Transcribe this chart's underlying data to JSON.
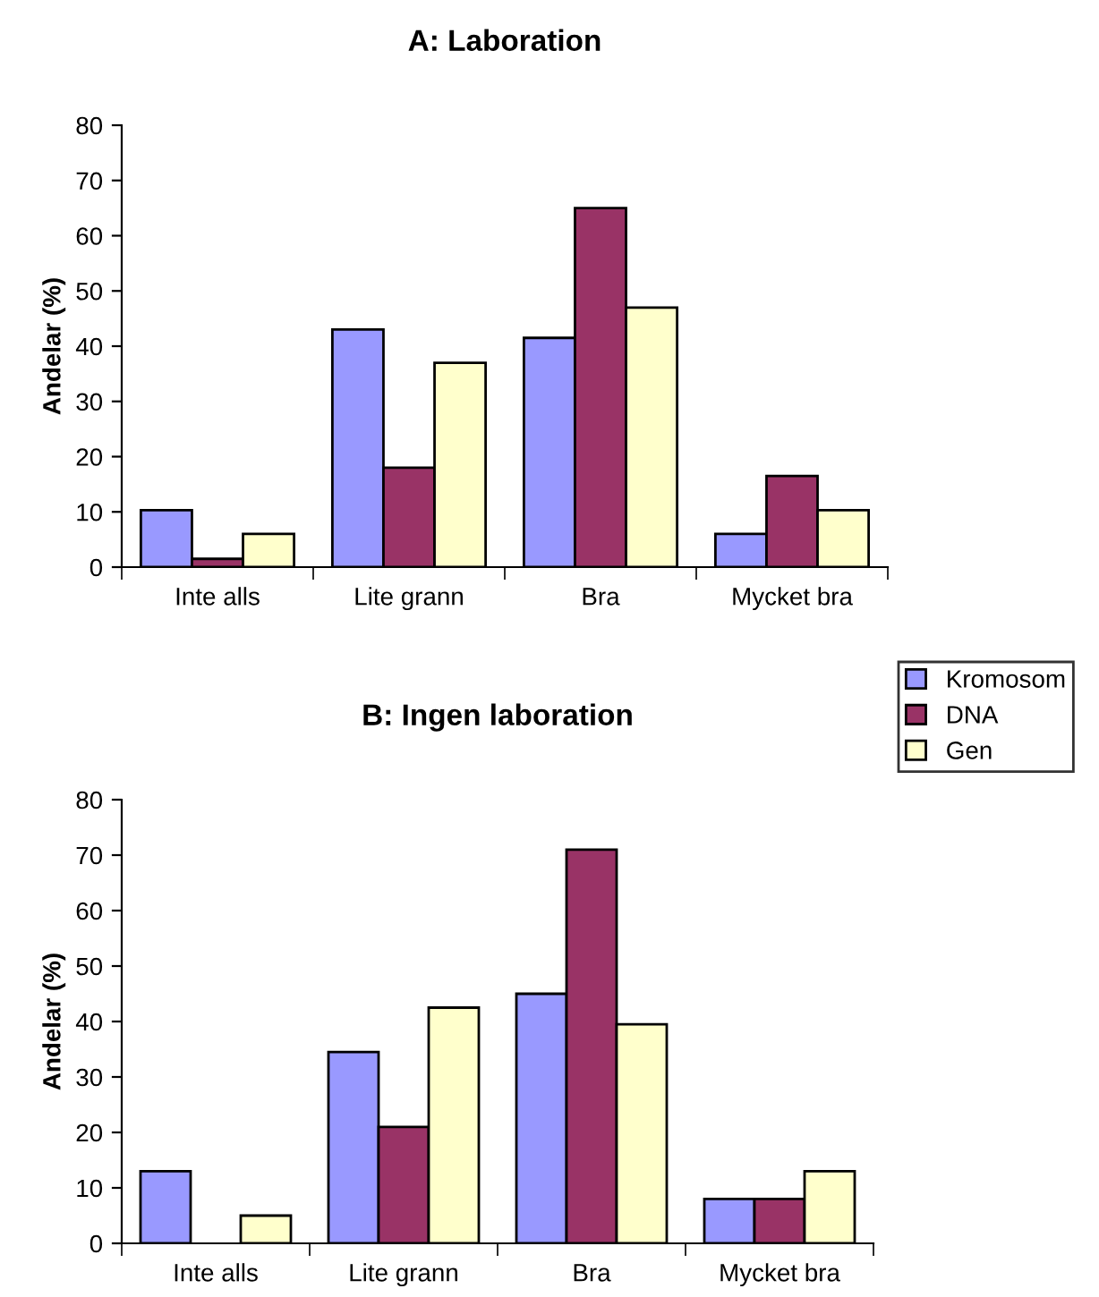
{
  "chart_data": [
    {
      "type": "bar",
      "title": "A: Laboration",
      "ylabel": "Andelar (%)",
      "categories": [
        "Inte alls",
        "Lite grann",
        "Bra",
        "Mycket bra"
      ],
      "series": [
        {
          "name": "Kromosom",
          "color": "#9999ff",
          "values": [
            10.3,
            43,
            41.5,
            6
          ]
        },
        {
          "name": "DNA",
          "color": "#993366",
          "values": [
            1.5,
            18,
            65,
            16.5
          ]
        },
        {
          "name": "Gen",
          "color": "#ffffcc",
          "values": [
            6,
            37,
            47,
            10.3
          ]
        }
      ],
      "ylim": [
        0,
        80
      ],
      "yticks": [
        0,
        10,
        20,
        30,
        40,
        50,
        60,
        70,
        80
      ],
      "grid": false,
      "legend": "right"
    },
    {
      "type": "bar",
      "title": "B: Ingen laboration",
      "ylabel": "Andelar (%)",
      "categories": [
        "Inte alls",
        "Lite grann",
        "Bra",
        "Mycket bra"
      ],
      "series": [
        {
          "name": "Kromosom",
          "color": "#9999ff",
          "values": [
            13,
            34.5,
            45,
            8
          ]
        },
        {
          "name": "DNA",
          "color": "#993366",
          "values": [
            null,
            21,
            71,
            8
          ]
        },
        {
          "name": "Gen",
          "color": "#ffffcc",
          "values": [
            5,
            42.5,
            39.5,
            13
          ]
        }
      ],
      "ylim": [
        0,
        80
      ],
      "yticks": [
        0,
        10,
        20,
        30,
        40,
        50,
        60,
        70,
        80
      ],
      "grid": false,
      "legend": "right"
    }
  ]
}
